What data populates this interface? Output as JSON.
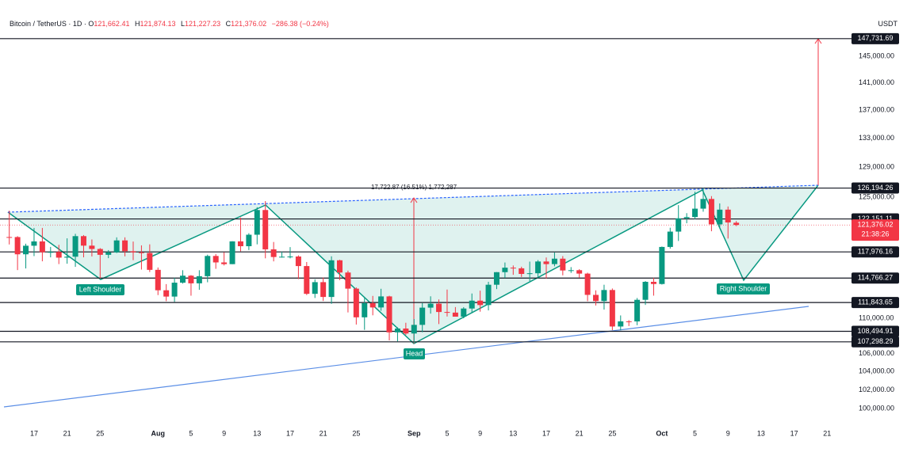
{
  "header": {
    "title": "Bitcoin / TetherUS · 1D ·",
    "ohlc": [
      {
        "key": "O",
        "value": "121,662.41"
      },
      {
        "key": "H",
        "value": "121,874.13"
      },
      {
        "key": "L",
        "value": "121,227.23"
      },
      {
        "key": "C",
        "value": "121,376.02"
      }
    ],
    "change": "−286.38 (−0.24%)",
    "currency": "USDT"
  },
  "chart_data": {
    "type": "candlestick",
    "categories": [
      null,
      null,
      null,
      "17",
      null,
      null,
      null,
      "21",
      null,
      null,
      null,
      "25",
      null,
      null,
      null,
      null,
      null,
      null,
      "Aug",
      null,
      null,
      null,
      "5",
      null,
      null,
      null,
      "9",
      null,
      null,
      null,
      "13",
      null,
      null,
      null,
      "17",
      null,
      null,
      null,
      "21",
      null,
      null,
      null,
      "25",
      null,
      null,
      null,
      null,
      null,
      null,
      "Sep",
      null,
      null,
      null,
      "5",
      null,
      null,
      null,
      "9",
      null,
      null,
      null,
      "13",
      null,
      null,
      null,
      "17",
      null,
      null,
      null,
      "21",
      null,
      null,
      null,
      "25",
      null,
      null,
      null,
      null,
      null,
      "Oct",
      null,
      null,
      null,
      "5",
      null,
      null,
      null,
      "9",
      null,
      null,
      null,
      "13",
      null,
      null,
      null,
      "17",
      null,
      null,
      null,
      "21"
    ],
    "open": [
      119841,
      119837,
      117678,
      118746,
      119289,
      117936,
      117972,
      117264,
      117381,
      119954,
      118756,
      118341,
      117614,
      117919,
      119415,
      118062,
      117922,
      117840,
      115764,
      113297,
      112546,
      114208,
      115055,
      114129,
      114992,
      117472,
      116674,
      116462,
      119295,
      118686,
      120134,
      123306,
      118295,
      117342,
      117380,
      117405,
      116227,
      112872,
      114271,
      112500,
      116937,
      115438,
      113493,
      110111,
      111763,
      111262,
      112566,
      108377,
      108816,
      108246,
      109237,
      111240,
      111705,
      110730,
      110660,
      110187,
      111137,
      112066,
      111546,
      113960,
      115482,
      116029,
      115950,
      115268,
      115349,
      116788,
      116468,
      117137,
      115688,
      115720,
      115306,
      112748,
      112014,
      113328,
      109049,
      109644,
      109635,
      112163,
      114311,
      114049,
      118594,
      120529,
      122233,
      122391,
      123482,
      124753,
      121451,
      123354,
      121662,
      null,
      null,
      null,
      null,
      null,
      null,
      null,
      null,
      null,
      null,
      null
    ],
    "high": [
      123218,
      119950,
      119000,
      120998,
      120999,
      118600,
      118856,
      119676,
      120247,
      120090,
      119535,
      118451,
      118200,
      119800,
      119800,
      119273,
      118792,
      118920,
      116052,
      114036,
      114800,
      115720,
      115127,
      115716,
      117630,
      117700,
      117944,
      119311,
      122335,
      120324,
      123667,
      124474,
      119216,
      117999,
      118575,
      117543,
      116725,
      114615,
      114824,
      117429,
      117000,
      115666,
      113640,
      112371,
      112625,
      113476,
      112646,
      108956,
      109480,
      109912,
      111771,
      112578,
      112206,
      113384,
      111307,
      111300,
      112913,
      113250,
      114313,
      115488,
      116665,
      116298,
      116150,
      116775,
      116964,
      117286,
      117900,
      117458,
      116100,
      115843,
      115415,
      113290,
      113960,
      113511,
      110330,
      109780,
      112375,
      114400,
      114792,
      118649,
      121022,
      123944,
      122896,
      125708,
      126199,
      125126,
      124167,
      123762,
      121874,
      null,
      null,
      null,
      null,
      null,
      null,
      null,
      null,
      null,
      null,
      null
    ],
    "low": [
      118905,
      115736,
      115934,
      117453,
      116812,
      117300,
      116468,
      116515,
      116128,
      117301,
      117412,
      114723,
      117200,
      117838,
      117427,
      116950,
      115800,
      115500,
      112722,
      112000,
      111920,
      114100,
      112650,
      113354,
      114259,
      115891,
      116300,
      116460,
      118050,
      118207,
      118920,
      117180,
      116803,
      117273,
      117172,
      114640,
      112732,
      112380,
      112025,
      111684,
      114525,
      110680,
      109274,
      108666,
      110345,
      110868,
      107463,
      107350,
      108076,
      107255,
      108393,
      110542,
      109329,
      110206,
      110207,
      110000,
      110617,
      110766,
      110917,
      113437,
      114774,
      115162,
      114900,
      114384,
      114737,
      114720,
      116197,
      115094,
      115395,
      114805,
      112000,
      111496,
      111012,
      108631,
      108620,
      109100,
      109200,
      111560,
      112656,
      113981,
      118383,
      119344,
      121600,
      122127,
      123084,
      120574,
      121091,
      119651,
      121227,
      null,
      null,
      null,
      null,
      null,
      null,
      null,
      null,
      null,
      null,
      null
    ],
    "close": [
      119837,
      117678,
      118746,
      119289,
      117936,
      117972,
      117264,
      117381,
      119954,
      118756,
      118341,
      117614,
      117919,
      119415,
      118062,
      117922,
      117840,
      115764,
      113297,
      112546,
      114208,
      115055,
      114129,
      114992,
      117472,
      116674,
      116462,
      119295,
      118686,
      120134,
      123306,
      118295,
      117342,
      117380,
      117405,
      116227,
      112872,
      114271,
      112500,
      116937,
      115438,
      113493,
      110111,
      111763,
      111262,
      112566,
      108377,
      108816,
      108246,
      109237,
      111240,
      111705,
      110730,
      110660,
      110187,
      111137,
      112066,
      111546,
      113960,
      115482,
      116029,
      115950,
      115268,
      115349,
      116788,
      116468,
      117137,
      115688,
      115720,
      115306,
      112748,
      112014,
      113328,
      109049,
      109644,
      109635,
      112163,
      114311,
      114049,
      118594,
      120529,
      122233,
      122391,
      123482,
      124753,
      121451,
      123354,
      121698,
      121376,
      null,
      null,
      null,
      null,
      null,
      null,
      null,
      null,
      null,
      null,
      null
    ],
    "up_color": "#089981",
    "down_color": "#f23645",
    "ylim": [
      98440,
      152600
    ],
    "log_scale": true,
    "yticks": [
      {
        "value": 145000,
        "label": "145,000.00"
      },
      {
        "value": 141000,
        "label": "141,000.00"
      },
      {
        "value": 137000,
        "label": "137,000.00"
      },
      {
        "value": 133000,
        "label": "133,000.00"
      },
      {
        "value": 129000,
        "label": "129,000.00"
      },
      {
        "value": 125000,
        "label": "125,000.00"
      },
      {
        "value": 110000,
        "label": "110,000.00"
      },
      {
        "value": 106000,
        "label": "106,000.00"
      },
      {
        "value": 104000,
        "label": "104,000.00"
      },
      {
        "value": 102000,
        "label": "102,000.00"
      },
      {
        "value": 100000,
        "label": "100,000.00"
      }
    ],
    "levels": [
      {
        "value": 147731.69,
        "label": "147,731.69"
      },
      {
        "value": 126194.26,
        "label": "126,194.26"
      },
      {
        "value": 122151.11,
        "label": "122,151.11"
      },
      {
        "value": 117976.16,
        "label": "117,976.16"
      },
      {
        "value": 114766.27,
        "label": "114,766.27"
      },
      {
        "value": 111843.65,
        "label": "111,843.65"
      },
      {
        "value": 108494.91,
        "label": "108,494.91"
      },
      {
        "value": 107298.29,
        "label": "107,298.29"
      }
    ],
    "current_price": {
      "value": 121376.02,
      "label": "121,376.02",
      "countdown": "21:38:26"
    },
    "annotations": {
      "left_shoulder": "Left Shoulder",
      "head": "Head",
      "right_shoulder": "Right Shoulder",
      "measure": "17,722.87 (16.51%) 1,772,287"
    }
  }
}
